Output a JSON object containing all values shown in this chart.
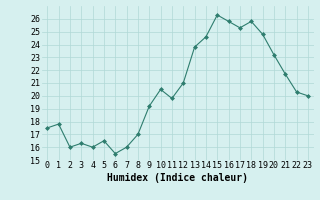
{
  "x": [
    0,
    1,
    2,
    3,
    4,
    5,
    6,
    7,
    8,
    9,
    10,
    11,
    12,
    13,
    14,
    15,
    16,
    17,
    18,
    19,
    20,
    21,
    22,
    23
  ],
  "y": [
    17.5,
    17.8,
    16.0,
    16.3,
    16.0,
    16.5,
    15.5,
    16.0,
    17.0,
    19.2,
    20.5,
    19.8,
    21.0,
    23.8,
    24.6,
    26.3,
    25.8,
    25.3,
    25.8,
    24.8,
    23.2,
    21.7,
    20.3,
    20.0
  ],
  "line_color": "#2e7d6e",
  "marker": "D",
  "marker_size": 2,
  "bg_color": "#d6f0ef",
  "grid_color": "#b0d8d6",
  "xlabel": "Humidex (Indice chaleur)",
  "ylim": [
    15,
    27
  ],
  "xlim": [
    -0.5,
    23.5
  ],
  "yticks": [
    15,
    16,
    17,
    18,
    19,
    20,
    21,
    22,
    23,
    24,
    25,
    26
  ],
  "xticks": [
    0,
    1,
    2,
    3,
    4,
    5,
    6,
    7,
    8,
    9,
    10,
    11,
    12,
    13,
    14,
    15,
    16,
    17,
    18,
    19,
    20,
    21,
    22,
    23
  ],
  "xtick_labels": [
    "0",
    "1",
    "2",
    "3",
    "4",
    "5",
    "6",
    "7",
    "8",
    "9",
    "10",
    "11",
    "12",
    "13",
    "14",
    "15",
    "16",
    "17",
    "18",
    "19",
    "20",
    "21",
    "22",
    "23"
  ],
  "tick_font_size": 6,
  "xlabel_fontsize": 7
}
